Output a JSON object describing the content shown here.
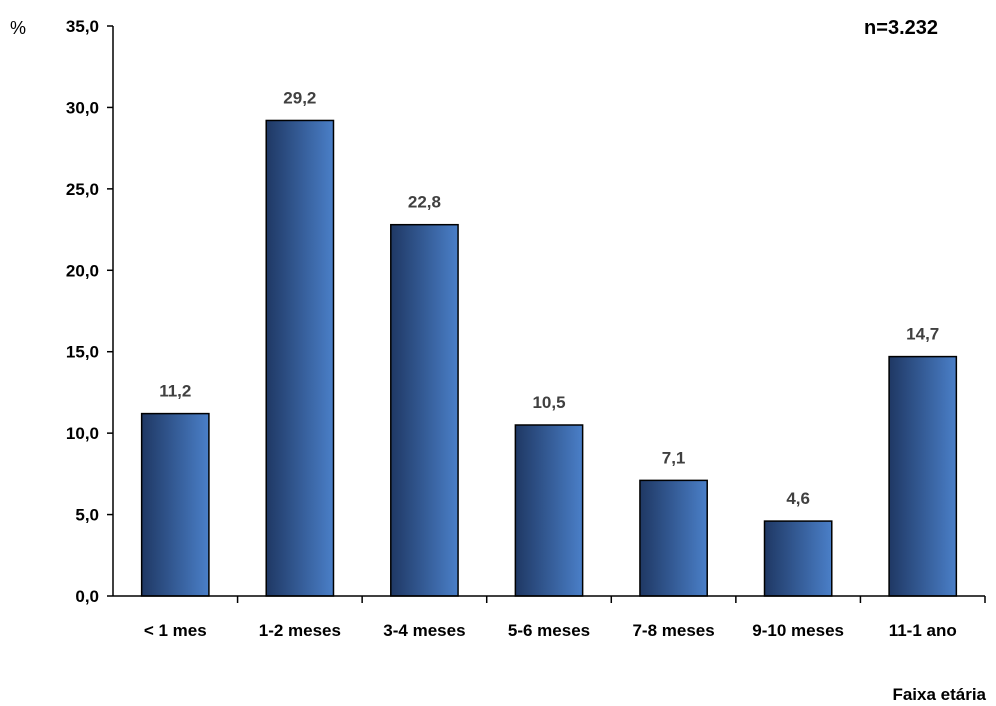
{
  "chart_data": {
    "type": "bar",
    "title": "",
    "ylabel": "%",
    "xlabel": "Faixa etária",
    "annotation": "n=3.232",
    "categories": [
      "< 1 mes",
      "1-2 meses",
      "3-4 meses",
      "5-6 meses",
      "7-8 meses",
      "9-10 meses",
      "11-1 ano"
    ],
    "values": [
      11.2,
      29.2,
      22.8,
      10.5,
      7.1,
      4.6,
      14.7
    ],
    "value_labels": [
      "11,2",
      "29,2",
      "22,8",
      "10,5",
      "7,1",
      "4,6",
      "14,7"
    ],
    "ylim": [
      0,
      35
    ],
    "yticks": [
      0,
      5,
      10,
      15,
      20,
      25,
      30,
      35
    ],
    "ytick_labels": [
      "0,0",
      "5,0",
      "10,0",
      "15,0",
      "20,0",
      "25,0",
      "30,0",
      "35,0"
    ],
    "grid": false,
    "legend": "none",
    "bar_color_dark": "#1f3864",
    "bar_color_light": "#4a7fc8"
  }
}
